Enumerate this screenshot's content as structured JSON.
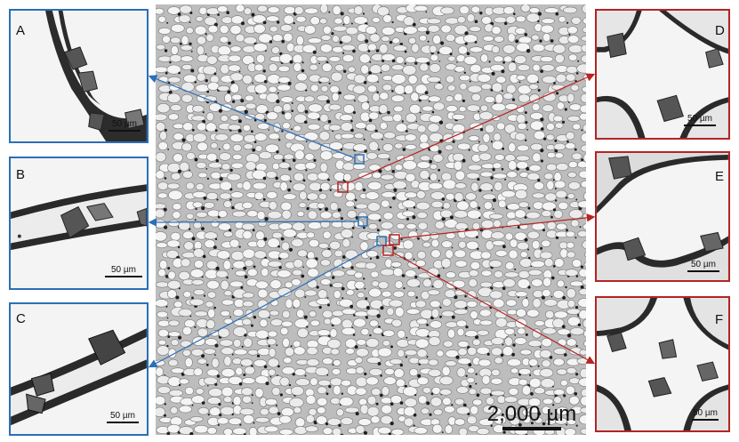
{
  "panels_left": [
    {
      "label": "A",
      "scale": "50 µm"
    },
    {
      "label": "B",
      "scale": "50 µm"
    },
    {
      "label": "C",
      "scale": "50 µm"
    }
  ],
  "panels_right": [
    {
      "label": "D",
      "scale": "50 µm"
    },
    {
      "label": "E",
      "scale": "50 µm"
    },
    {
      "label": "F",
      "scale": "50 µm"
    }
  ],
  "main_scale": "2,000 µm",
  "colors": {
    "blue": "#2a6fb8",
    "red": "#b52424"
  }
}
